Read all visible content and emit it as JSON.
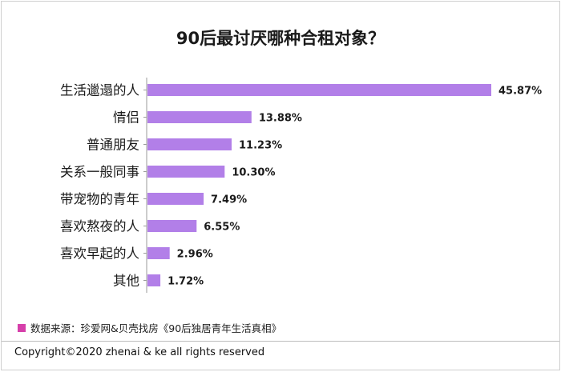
{
  "chart_data": {
    "type": "bar",
    "orientation": "horizontal",
    "title": "90后最讨厌哪种合租对象？",
    "categories": [
      "生活邋遢的人",
      "情侣",
      "普通朋友",
      "关系一般同事",
      "带宠物的青年",
      "喜欢熬夜的人",
      "喜欢早起的人",
      "其他"
    ],
    "values": [
      45.87,
      13.88,
      11.23,
      10.3,
      7.49,
      6.55,
      2.96,
      1.72
    ],
    "value_labels": [
      "45.87%",
      "13.88%",
      "11.23%",
      "10.30%",
      "7.49%",
      "6.55%",
      "2.96%",
      "1.72%"
    ],
    "xlim": [
      0,
      45.87
    ],
    "bar_color": "#b27fe8",
    "axis_color": "#9a9a9a"
  },
  "source": {
    "label": "数据来源：珍爱网&贝壳找房《90后独居青年生活真相》",
    "swatch_color": "#d63faa"
  },
  "footer": {
    "copyright": "Copyright©2020 zhenai & ke all rights reserved"
  }
}
